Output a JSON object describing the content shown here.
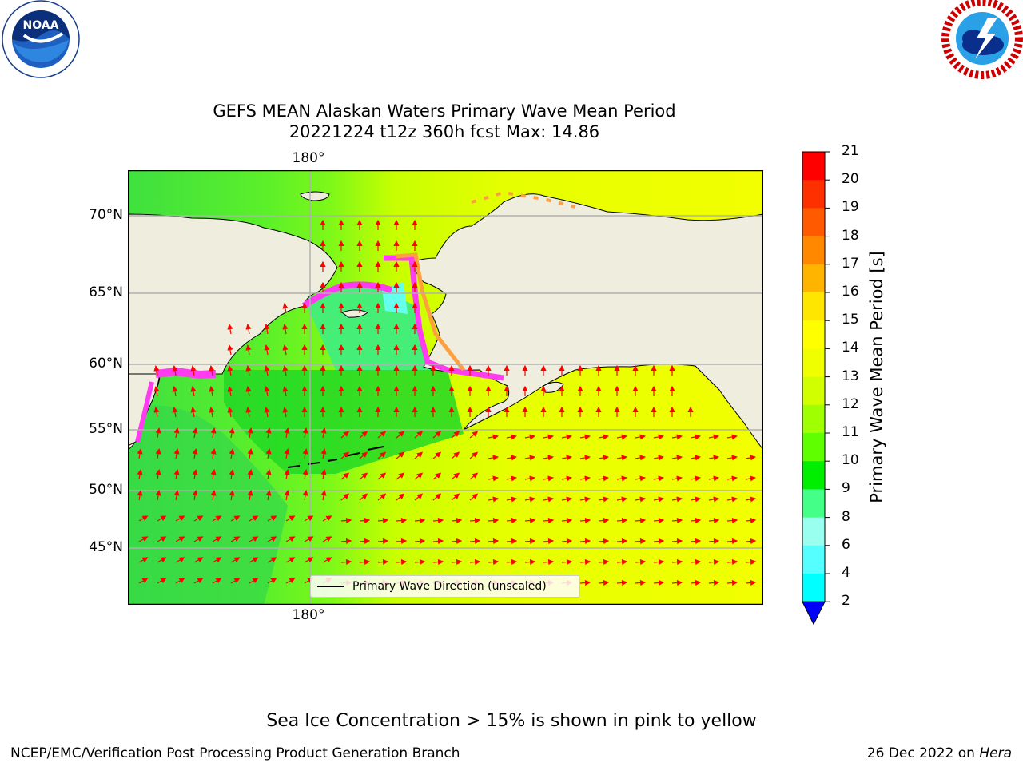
{
  "logos": {
    "noaa": {
      "text": "NOAA",
      "ring_text": "NATIONAL OCEANIC AND ATMOSPHERIC ADMINISTRATION · U.S. DEPARTMENT OF COMMERCE"
    },
    "nws": {
      "ring_text": "NATIONAL WEATHER SERVICE"
    }
  },
  "title": {
    "line1": "GEFS MEAN Alaskan Waters Primary Wave Mean Period",
    "line2": "20221224 t12z 360h fcst   Max: 14.86"
  },
  "map": {
    "lon_labels": [
      "180°",
      "180°"
    ],
    "lat_labels": [
      "70°N",
      "65°N",
      "60°N",
      "55°N",
      "50°N",
      "45°N"
    ],
    "legend": "Primary Wave Direction (unscaled)",
    "colors": {
      "land": "#efedde",
      "arrow": "#ff0000",
      "grid": "#b0b0b0",
      "ice_pink": "#ff3cf0",
      "ice_orange": "#ffa040"
    }
  },
  "colorbar": {
    "label": "Primary Wave Mean Period [s]",
    "ticks": [
      "21",
      "20",
      "19",
      "18",
      "17",
      "16",
      "15",
      "14",
      "13",
      "12",
      "11",
      "10",
      "9",
      "8",
      "6",
      "4",
      "2"
    ],
    "colors": [
      "#ff0000",
      "#ff3000",
      "#ff5a00",
      "#ff8800",
      "#ffb400",
      "#ffe600",
      "#ffff00",
      "#f0ff00",
      "#d2ff00",
      "#a0ff00",
      "#60ff00",
      "#00ee00",
      "#44ff88",
      "#99ffee",
      "#55ffff",
      "#00ffff",
      "#00ccff",
      "#0080ff"
    ],
    "extend_color": "#0000ff"
  },
  "note": "Sea Ice Concentration > 15% is shown in pink to yellow",
  "footer": {
    "left": "NCEP/EMC/Verification Post Processing Product Generation Branch",
    "right_prefix": "26 Dec 2022 on ",
    "right_machine": "Hera"
  }
}
